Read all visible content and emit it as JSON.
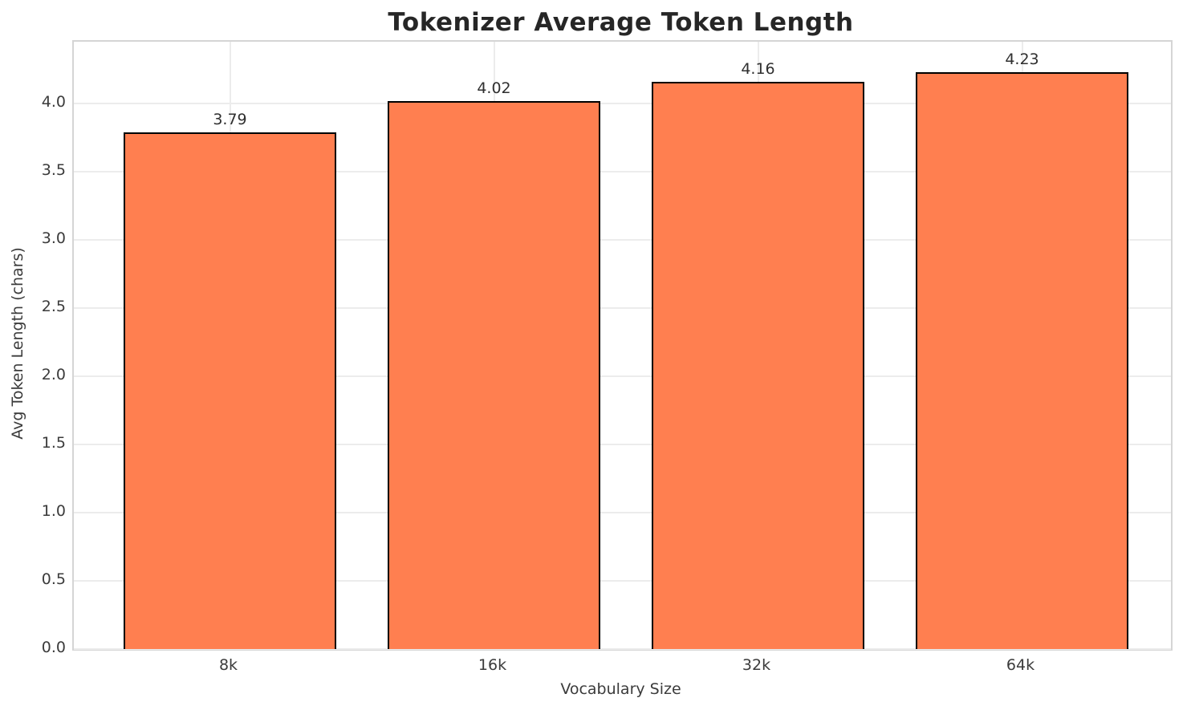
{
  "chart_data": {
    "type": "bar",
    "title": "Tokenizer Average Token Length",
    "xlabel": "Vocabulary Size",
    "ylabel": "Avg Token Length (chars)",
    "categories": [
      "8k",
      "16k",
      "32k",
      "64k"
    ],
    "values": [
      3.79,
      4.02,
      4.16,
      4.23
    ],
    "value_labels": [
      "3.79",
      "4.02",
      "4.16",
      "4.23"
    ],
    "yticks": [
      0.0,
      0.5,
      1.0,
      1.5,
      2.0,
      2.5,
      3.0,
      3.5,
      4.0
    ],
    "ytick_labels": [
      "0.0",
      "0.5",
      "1.0",
      "1.5",
      "2.0",
      "2.5",
      "3.0",
      "3.5",
      "4.0"
    ],
    "ylim": [
      0,
      4.453
    ],
    "grid": true,
    "legend_position": "none",
    "colors": {
      "bar_fill": "#FF7F50",
      "bar_edge": "#000000",
      "grid": "#ececec",
      "spine": "#d5d5d5",
      "title_text": "#262626",
      "tick_text": "#3b3b3b",
      "background": "#ffffff"
    }
  }
}
